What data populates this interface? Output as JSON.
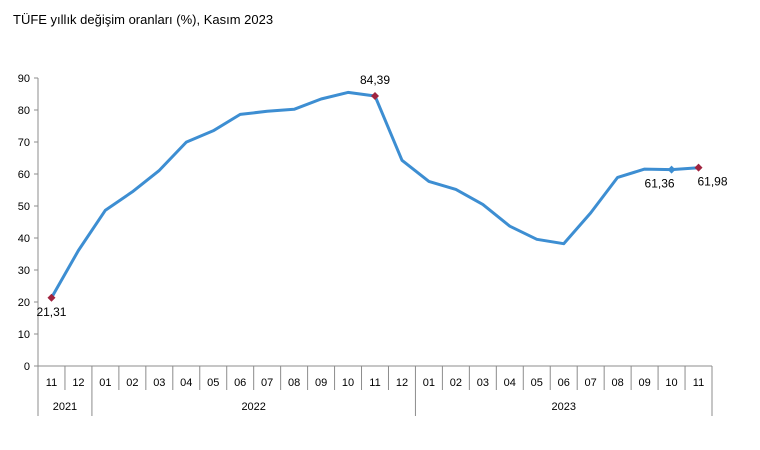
{
  "title": "TÜFE yıllık değişim oranları (%), Kasım 2023",
  "chart_data": {
    "type": "line",
    "title": "TÜFE yıllık değişim oranları (%), Kasım 2023",
    "xlabel": "",
    "ylabel": "",
    "ylim": [
      0,
      90
    ],
    "yticks": [
      "0",
      "10",
      "20",
      "30",
      "40",
      "50",
      "60",
      "70",
      "80",
      "90"
    ],
    "grid": false,
    "legend": "none",
    "categories": [
      "11",
      "12",
      "01",
      "02",
      "03",
      "04",
      "05",
      "06",
      "07",
      "08",
      "09",
      "10",
      "11",
      "12",
      "01",
      "02",
      "03",
      "04",
      "05",
      "06",
      "07",
      "08",
      "09",
      "10",
      "11"
    ],
    "year_groups": [
      {
        "label": "2021",
        "count": 2
      },
      {
        "label": "2022",
        "count": 12
      },
      {
        "label": "2023",
        "count": 11
      }
    ],
    "series": [
      {
        "values": [
          21.31,
          36.08,
          48.69,
          54.44,
          61.14,
          69.97,
          73.5,
          78.62,
          79.6,
          80.21,
          83.45,
          85.51,
          84.39,
          64.27,
          57.68,
          55.18,
          50.51,
          43.68,
          39.59,
          38.21,
          47.83,
          58.94,
          61.53,
          61.36,
          61.98
        ],
        "color": "#3d8ed2"
      }
    ],
    "markers": [
      {
        "index": 0,
        "label": "21,31",
        "color": "#a0243f"
      },
      {
        "index": 12,
        "label": "84,39",
        "color": "#a0243f"
      },
      {
        "index": 23,
        "label": "61,36",
        "color": "#3d8ed2"
      },
      {
        "index": 24,
        "label": "61,98",
        "color": "#a0243f"
      }
    ]
  }
}
